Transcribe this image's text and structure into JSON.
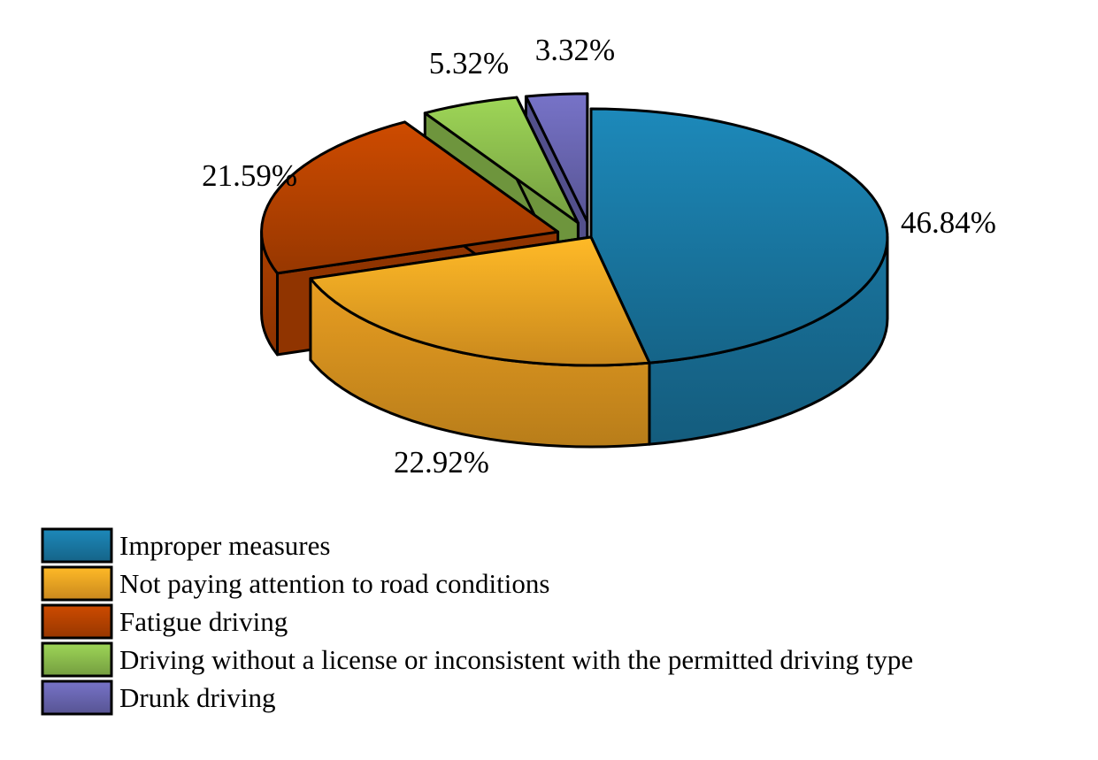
{
  "chart_data": {
    "type": "pie",
    "style": "3d-exploded",
    "slices": [
      {
        "label": "Improper measures",
        "value": 46.84,
        "value_label": "46.84%",
        "color": "#1a7aa6"
      },
      {
        "label": "Not paying attention to road conditions",
        "value": 22.92,
        "value_label": "22.92%",
        "color": "#f5a623"
      },
      {
        "label": "Fatigue driving",
        "value": 21.59,
        "value_label": "21.59%",
        "color": "#b84300"
      },
      {
        "label": "Driving without a license or inconsistent with the permitted driving type",
        "value": 5.32,
        "value_label": "5.32%",
        "color": "#8dbf4e"
      },
      {
        "label": "Drunk driving",
        "value": 3.32,
        "value_label": "3.32%",
        "color": "#6a67b3"
      }
    ],
    "legend_position": "bottom-left"
  }
}
